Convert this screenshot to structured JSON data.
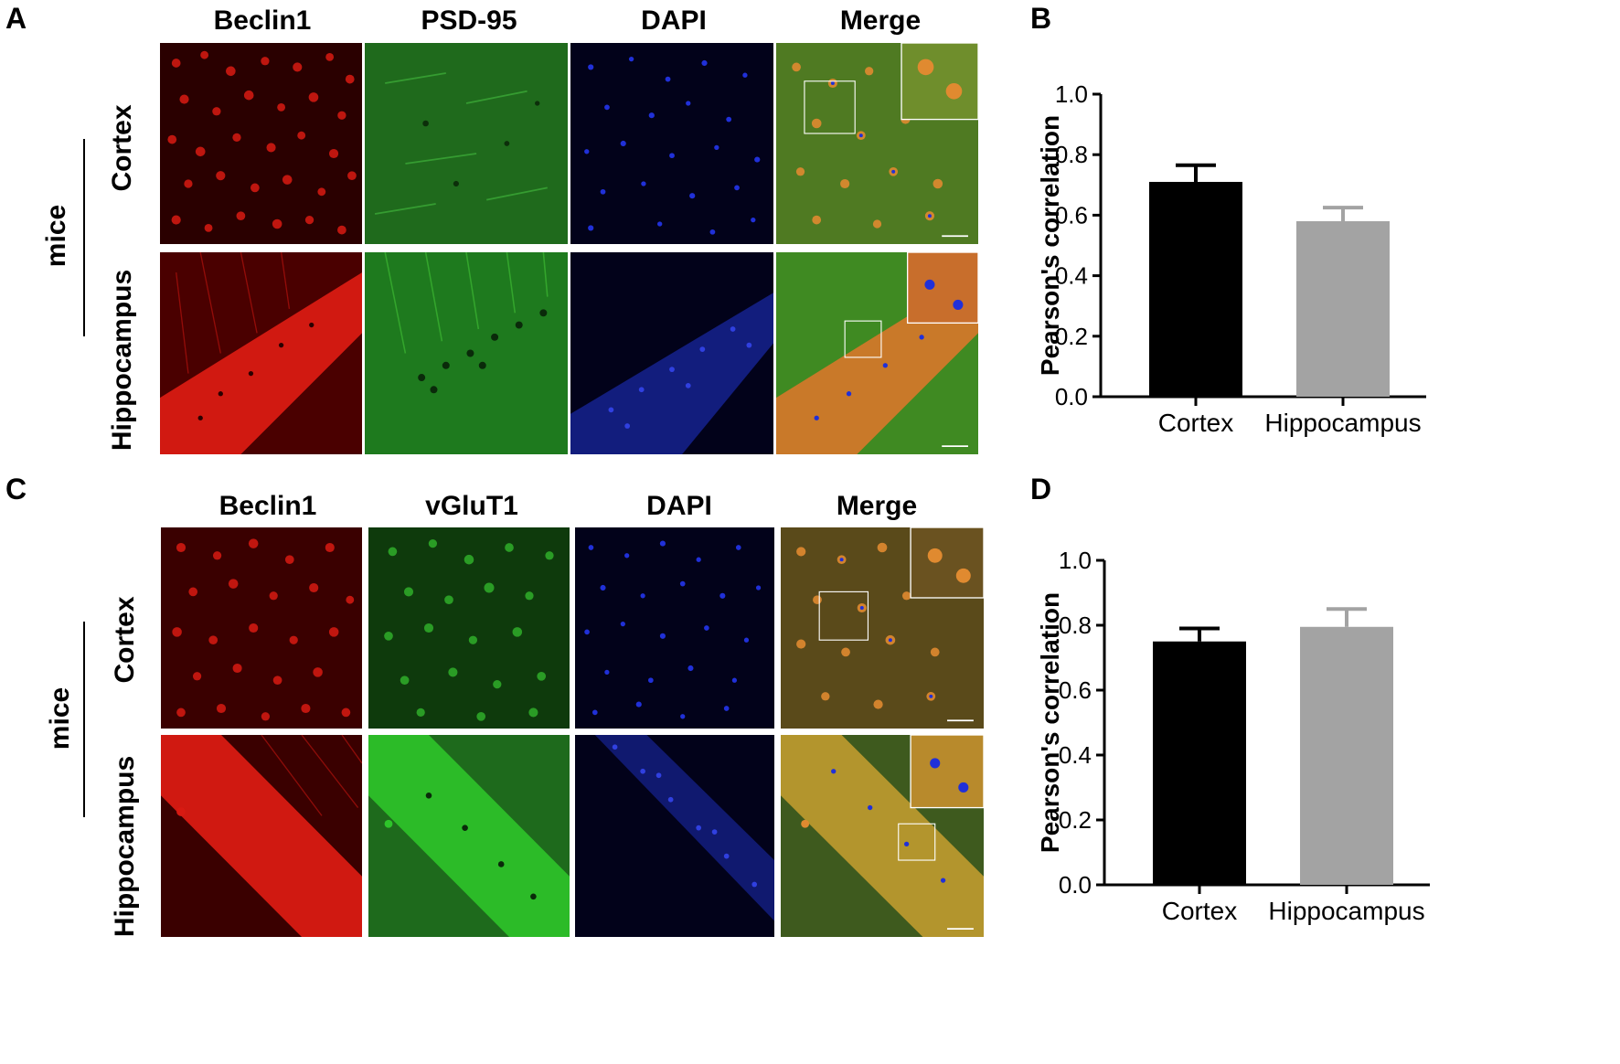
{
  "panels": {
    "A": {
      "letter": "A",
      "columns": [
        "Beclin1",
        "PSD-95",
        "DAPI",
        "Merge"
      ],
      "rows": [
        "Cortex",
        "Hippocampus"
      ],
      "group_label": "mice"
    },
    "B": {
      "letter": "B"
    },
    "C": {
      "letter": "C",
      "columns": [
        "Beclin1",
        "vGluT1",
        "DAPI",
        "Merge"
      ],
      "rows": [
        "Cortex",
        "Hippocampus"
      ],
      "group_label": "mice"
    },
    "D": {
      "letter": "D"
    }
  },
  "colors": {
    "beclin1": "#d81a12",
    "psd95": "#2f9a2a",
    "vglut1": "#2fae2a",
    "dapi": "#2030d8",
    "merge_bg": "#4f7a22",
    "merge_cells": "#e08a30",
    "bar_cortex": "#000000",
    "bar_hippocampus": "#a3a3a3"
  },
  "chart_data": [
    {
      "type": "bar",
      "panel": "B",
      "categories": [
        "Cortex",
        "Hippocampus"
      ],
      "values": [
        0.71,
        0.58
      ],
      "errors": [
        0.055,
        0.045
      ],
      "bar_colors": [
        "#000000",
        "#a3a3a3"
      ],
      "title": "",
      "xlabel": "",
      "ylabel": "Pearson's correlation",
      "ylim": [
        0,
        1.0
      ],
      "yticks": [
        "0.0",
        "0.2",
        "0.4",
        "0.6",
        "0.8",
        "1.0"
      ],
      "grid": false
    },
    {
      "type": "bar",
      "panel": "D",
      "categories": [
        "Cortex",
        "Hippocampus"
      ],
      "values": [
        0.75,
        0.795
      ],
      "errors": [
        0.04,
        0.055
      ],
      "bar_colors": [
        "#000000",
        "#a3a3a3"
      ],
      "title": "",
      "xlabel": "",
      "ylabel": "Pearson's correlation",
      "ylim": [
        0,
        1.0
      ],
      "yticks": [
        "0.0",
        "0.2",
        "0.4",
        "0.6",
        "0.8",
        "1.0"
      ],
      "grid": false
    }
  ]
}
